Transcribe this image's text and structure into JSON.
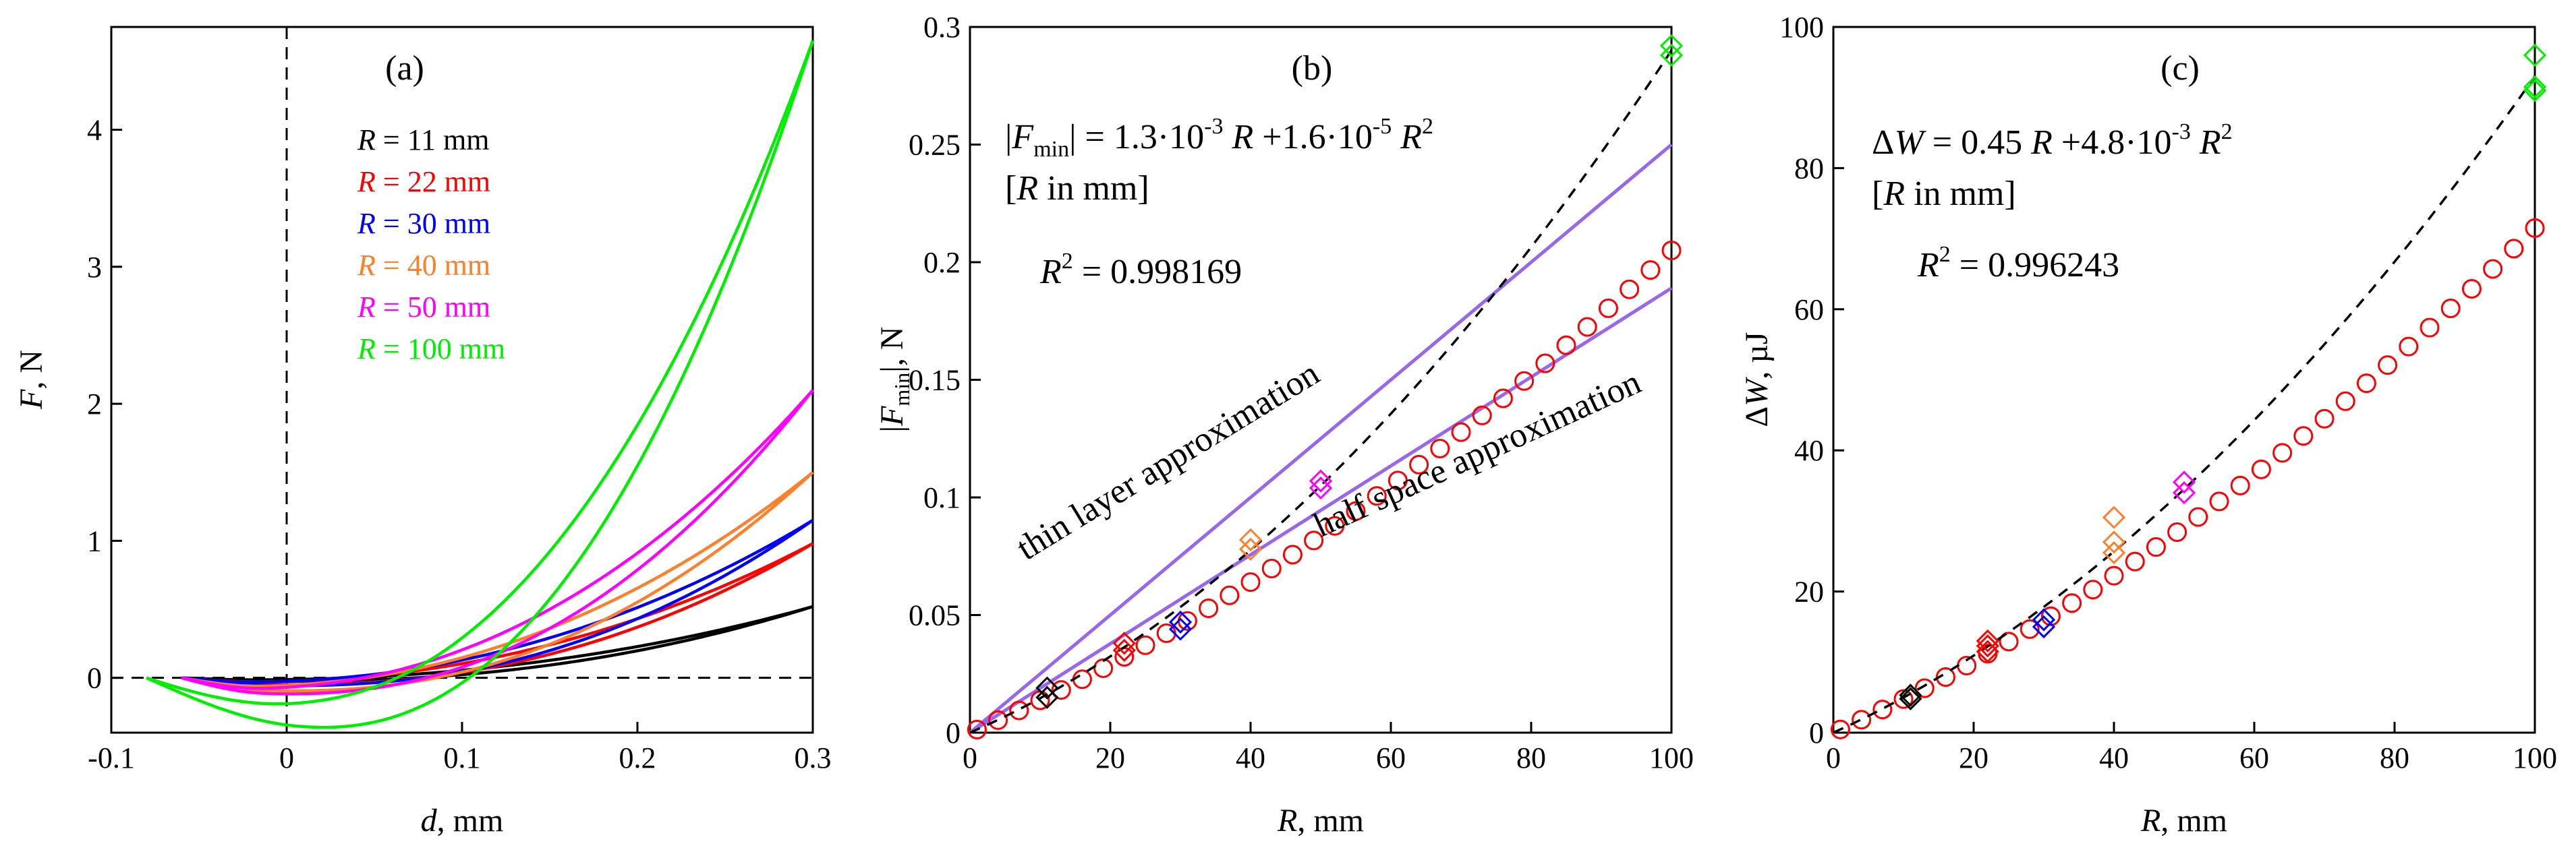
{
  "chart_data": [
    {
      "panel_label": "(a)",
      "type": "line",
      "xlabel": {
        "var": "d",
        "unit": ", mm"
      },
      "ylabel": {
        "var": "F",
        "unit": ", N"
      },
      "xlim": [
        -0.1,
        0.3
      ],
      "ylim": [
        -0.4,
        4.75
      ],
      "xticks": [
        -0.1,
        0,
        0.1,
        0.2,
        0.3
      ],
      "xticklabels": [
        "-0.1",
        "0",
        "0.1",
        "0.2",
        "0.3"
      ],
      "yticks": [
        0,
        1,
        2,
        3,
        4
      ],
      "yticklabels": [
        "0",
        "1",
        "2",
        "3",
        "4"
      ],
      "reference_lines": [
        "x = 0 (dashed)",
        "y = 0 (dashed)"
      ],
      "legend_var": "R",
      "series": [
        {
          "name": "R = 11 mm",
          "legend_value": " = 11 mm",
          "color": "#000000",
          "d_min": -0.06,
          "d_at_min": -0.01,
          "F_min": -0.02,
          "F_end": 0.52,
          "loop": 0.03
        },
        {
          "name": "R = 22 mm",
          "legend_value": " = 22 mm",
          "color": "#ff0000",
          "d_min": -0.06,
          "d_at_min": -0.01,
          "F_min": -0.04,
          "F_end": 0.98,
          "loop": 0.06
        },
        {
          "name": "R = 30 mm",
          "legend_value": " = 30 mm",
          "color": "#0000ff",
          "d_min": -0.06,
          "d_at_min": -0.01,
          "F_min": -0.045,
          "F_end": 1.15,
          "loop": 0.08
        },
        {
          "name": "R = 40 mm",
          "legend_value": " = 40 mm",
          "color": "#ff7f2a",
          "d_min": -0.06,
          "d_at_min": -0.01,
          "F_min": -0.08,
          "F_end": 1.5,
          "loop": 0.1
        },
        {
          "name": "R = 50 mm",
          "legend_value": " = 50 mm",
          "color": "#ff00ff",
          "d_min": -0.06,
          "d_at_min": -0.01,
          "F_min": -0.1,
          "F_end": 2.1,
          "loop": 0.12
        },
        {
          "name": "R = 100 mm",
          "legend_value": " = 100 mm",
          "color": "#00ee00",
          "d_min": -0.08,
          "d_at_min": 0.01,
          "F_min": -0.29,
          "F_end": 4.65,
          "loop": 0.3
        }
      ]
    },
    {
      "panel_label": "(b)",
      "type": "scatter",
      "xlabel": {
        "var": "R",
        "unit": ", mm"
      },
      "ylabel": {
        "pre": "|",
        "var": "F",
        "sub": "min",
        "post": "|, N"
      },
      "xlim": [
        0,
        100
      ],
      "ylim": [
        0,
        0.3
      ],
      "xticks": [
        0,
        20,
        40,
        60,
        80,
        100
      ],
      "xticklabels": [
        "0",
        "20",
        "40",
        "60",
        "80",
        "100"
      ],
      "yticks": [
        0,
        0.05,
        0.1,
        0.15,
        0.2,
        0.25,
        0.3
      ],
      "yticklabels": [
        "0",
        "0.05",
        "0.1",
        "0.15",
        "0.2",
        "0.25",
        "0.3"
      ],
      "fit": {
        "a": 0.0013,
        "b": 1.6e-05,
        "color": "#000000",
        "style": "dashed"
      },
      "simulation_circles": {
        "color": "#ff0000",
        "x_start": 1,
        "x_end": 100,
        "y_end": 0.205
      },
      "approximations": [
        {
          "name": "thin layer approximation",
          "slope": 0.0025,
          "color": "#9966ee"
        },
        {
          "name": "half space approximation",
          "slope": 0.00189,
          "color": "#9966ee"
        }
      ],
      "measured": [
        {
          "R": 11,
          "color": "#000000",
          "values": [
            0.015,
            0.019
          ]
        },
        {
          "R": 22,
          "color": "#ff0000",
          "values": [
            0.035,
            0.038
          ]
        },
        {
          "R": 30,
          "color": "#0000ff",
          "values": [
            0.044,
            0.047
          ]
        },
        {
          "R": 40,
          "color": "#ff7f2a",
          "values": [
            0.078,
            0.082
          ]
        },
        {
          "R": 50,
          "color": "#ff00ff",
          "values": [
            0.104,
            0.107
          ]
        },
        {
          "R": 100,
          "color": "#00ee00",
          "values": [
            0.288,
            0.292
          ]
        }
      ],
      "equation": {
        "lhs_pre": "|",
        "lhs_var": "F",
        "lhs_sub": "min",
        "lhs_post": "| = 1.3·10",
        "exp1": "-3",
        "var1": " R",
        "mid": " +1.6·10",
        "exp2": "-5",
        "var2": " R",
        "exp3": "2"
      },
      "units_note": {
        "pre": "[",
        "var": "R",
        "post": " in mm]"
      },
      "r_squared": {
        "var": "R",
        "exp": "2",
        "value": " = 0.998169"
      }
    },
    {
      "panel_label": "(c)",
      "type": "scatter",
      "xlabel": {
        "var": "R",
        "unit": ", mm"
      },
      "ylabel": {
        "pre": "Δ",
        "var": "W",
        "unit": ", µJ"
      },
      "xlim": [
        0,
        100
      ],
      "ylim": [
        0,
        100
      ],
      "xticks": [
        0,
        20,
        40,
        60,
        80,
        100
      ],
      "xticklabels": [
        "0",
        "20",
        "40",
        "60",
        "80",
        "100"
      ],
      "yticks": [
        0,
        20,
        40,
        60,
        80,
        100
      ],
      "yticklabels": [
        "0",
        "20",
        "40",
        "60",
        "80",
        "100"
      ],
      "fit": {
        "a": 0.45,
        "b": 0.0048,
        "color": "#000000",
        "style": "dashed"
      },
      "simulation_circles": {
        "color": "#ff0000",
        "x_start": 1,
        "x_end": 100,
        "y_end": 71.5
      },
      "measured": [
        {
          "R": 11,
          "color": "#000000",
          "values": [
            4.8,
            5.3
          ]
        },
        {
          "R": 22,
          "color": "#ff0000",
          "values": [
            11.5,
            12.3,
            13
          ]
        },
        {
          "R": 30,
          "color": "#0000ff",
          "values": [
            15,
            16
          ]
        },
        {
          "R": 40,
          "color": "#ff7f2a",
          "values": [
            25.5,
            27,
            30.5
          ]
        },
        {
          "R": 50,
          "color": "#ff00ff",
          "values": [
            34,
            35.5
          ]
        },
        {
          "R": 100,
          "color": "#00ee00",
          "values": [
            91,
            91.5,
            96
          ]
        }
      ],
      "equation": {
        "pre": "Δ",
        "var0": "W",
        "mid0": " = 0.45",
        "var1": " R",
        "mid": " +4.8·10",
        "exp2": "-3",
        "var2": " R",
        "exp3": "2"
      },
      "units_note": {
        "pre": "[",
        "var": "R",
        "post": " in mm]"
      },
      "r_squared": {
        "var": "R",
        "exp": "2",
        "value": " = 0.996243"
      }
    }
  ]
}
